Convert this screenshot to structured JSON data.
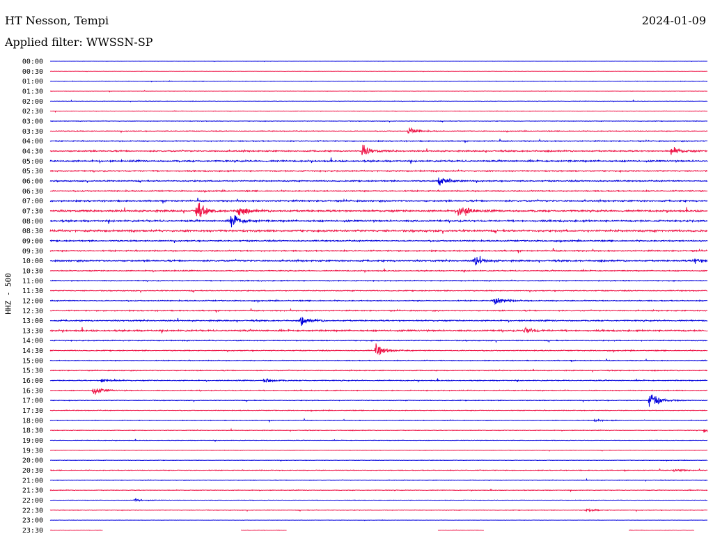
{
  "header": {
    "station": "HT Nesson, Tempi",
    "date": "2024-01-09",
    "filter": "Applied filter: WWSSN-SP"
  },
  "chart_data": {
    "type": "line",
    "title": "HT Nesson, Tempi",
    "subtitle": "Applied filter: WWSSN-SP",
    "ylabel": "HHZ - 500",
    "colors": [
      "#0000dd",
      "#ee1144"
    ],
    "tick_labels": [
      "00:00",
      "00:30",
      "01:00",
      "01:30",
      "02:00",
      "02:30",
      "03:00",
      "03:30",
      "04:00",
      "04:30",
      "05:00",
      "05:30",
      "06:00",
      "06:30",
      "07:00",
      "07:30",
      "08:00",
      "08:30",
      "09:00",
      "09:30",
      "10:00",
      "10:30",
      "11:00",
      "11:30",
      "12:00",
      "12:30",
      "13:00",
      "13:30",
      "14:00",
      "14:30",
      "15:00",
      "15:30",
      "16:00",
      "16:30",
      "17:00",
      "17:30",
      "18:00",
      "18:30",
      "19:00",
      "19:30",
      "20:00",
      "20:30",
      "21:00",
      "21:30",
      "22:00",
      "22:30",
      "23:00",
      "23:30"
    ],
    "noise_levels": [
      0.3,
      0.3,
      0.6,
      0.4,
      0.5,
      0.6,
      0.7,
      0.9,
      1.2,
      1.6,
      2.0,
      1.6,
      1.5,
      1.5,
      1.8,
      2.2,
      2.2,
      2.4,
      1.6,
      1.6,
      1.8,
      1.3,
      1.2,
      1.2,
      1.3,
      1.3,
      1.6,
      2.0,
      1.2,
      1.2,
      1.0,
      1.0,
      1.2,
      1.2,
      0.9,
      0.9,
      0.8,
      0.8,
      0.7,
      0.6,
      0.6,
      0.9,
      0.7,
      0.8,
      0.6,
      0.8,
      0.4,
      0.5
    ],
    "events": [
      {
        "line": "03:30",
        "minute": 16.3,
        "amplitude": 10
      },
      {
        "line": "04:30",
        "minute": 14.2,
        "amplitude": 12
      },
      {
        "line": "04:30",
        "minute": 28.3,
        "amplitude": 11
      },
      {
        "line": "06:00",
        "minute": 17.7,
        "amplitude": 16
      },
      {
        "line": "07:30",
        "minute": 6.6,
        "amplitude": 20
      },
      {
        "line": "07:30",
        "minute": 8.5,
        "amplitude": 13
      },
      {
        "line": "07:30",
        "minute": 18.6,
        "amplitude": 22
      },
      {
        "line": "08:00",
        "minute": 8.2,
        "amplitude": 18
      },
      {
        "line": "10:00",
        "minute": 19.3,
        "amplitude": 11
      },
      {
        "line": "10:00",
        "minute": 29.3,
        "amplitude": 7
      },
      {
        "line": "12:00",
        "minute": 20.2,
        "amplitude": 14
      },
      {
        "line": "13:00",
        "minute": 11.4,
        "amplitude": 11
      },
      {
        "line": "13:30",
        "minute": 21.6,
        "amplitude": 8
      },
      {
        "line": "14:30",
        "minute": 14.8,
        "amplitude": 15
      },
      {
        "line": "16:00",
        "minute": 2.3,
        "amplitude": 6
      },
      {
        "line": "16:00",
        "minute": 9.7,
        "amplitude": 7
      },
      {
        "line": "16:30",
        "minute": 1.9,
        "amplitude": 10
      },
      {
        "line": "17:00",
        "minute": 27.3,
        "amplitude": 22
      },
      {
        "line": "18:00",
        "minute": 24.8,
        "amplitude": 5
      },
      {
        "line": "18:30",
        "minute": 29.8,
        "amplitude": 5
      },
      {
        "line": "20:30",
        "minute": 28.4,
        "amplitude": 4
      },
      {
        "line": "22:00",
        "minute": 3.8,
        "amplitude": 4
      },
      {
        "line": "22:30",
        "minute": 24.4,
        "amplitude": 4
      }
    ],
    "trace_end": "23:30"
  }
}
